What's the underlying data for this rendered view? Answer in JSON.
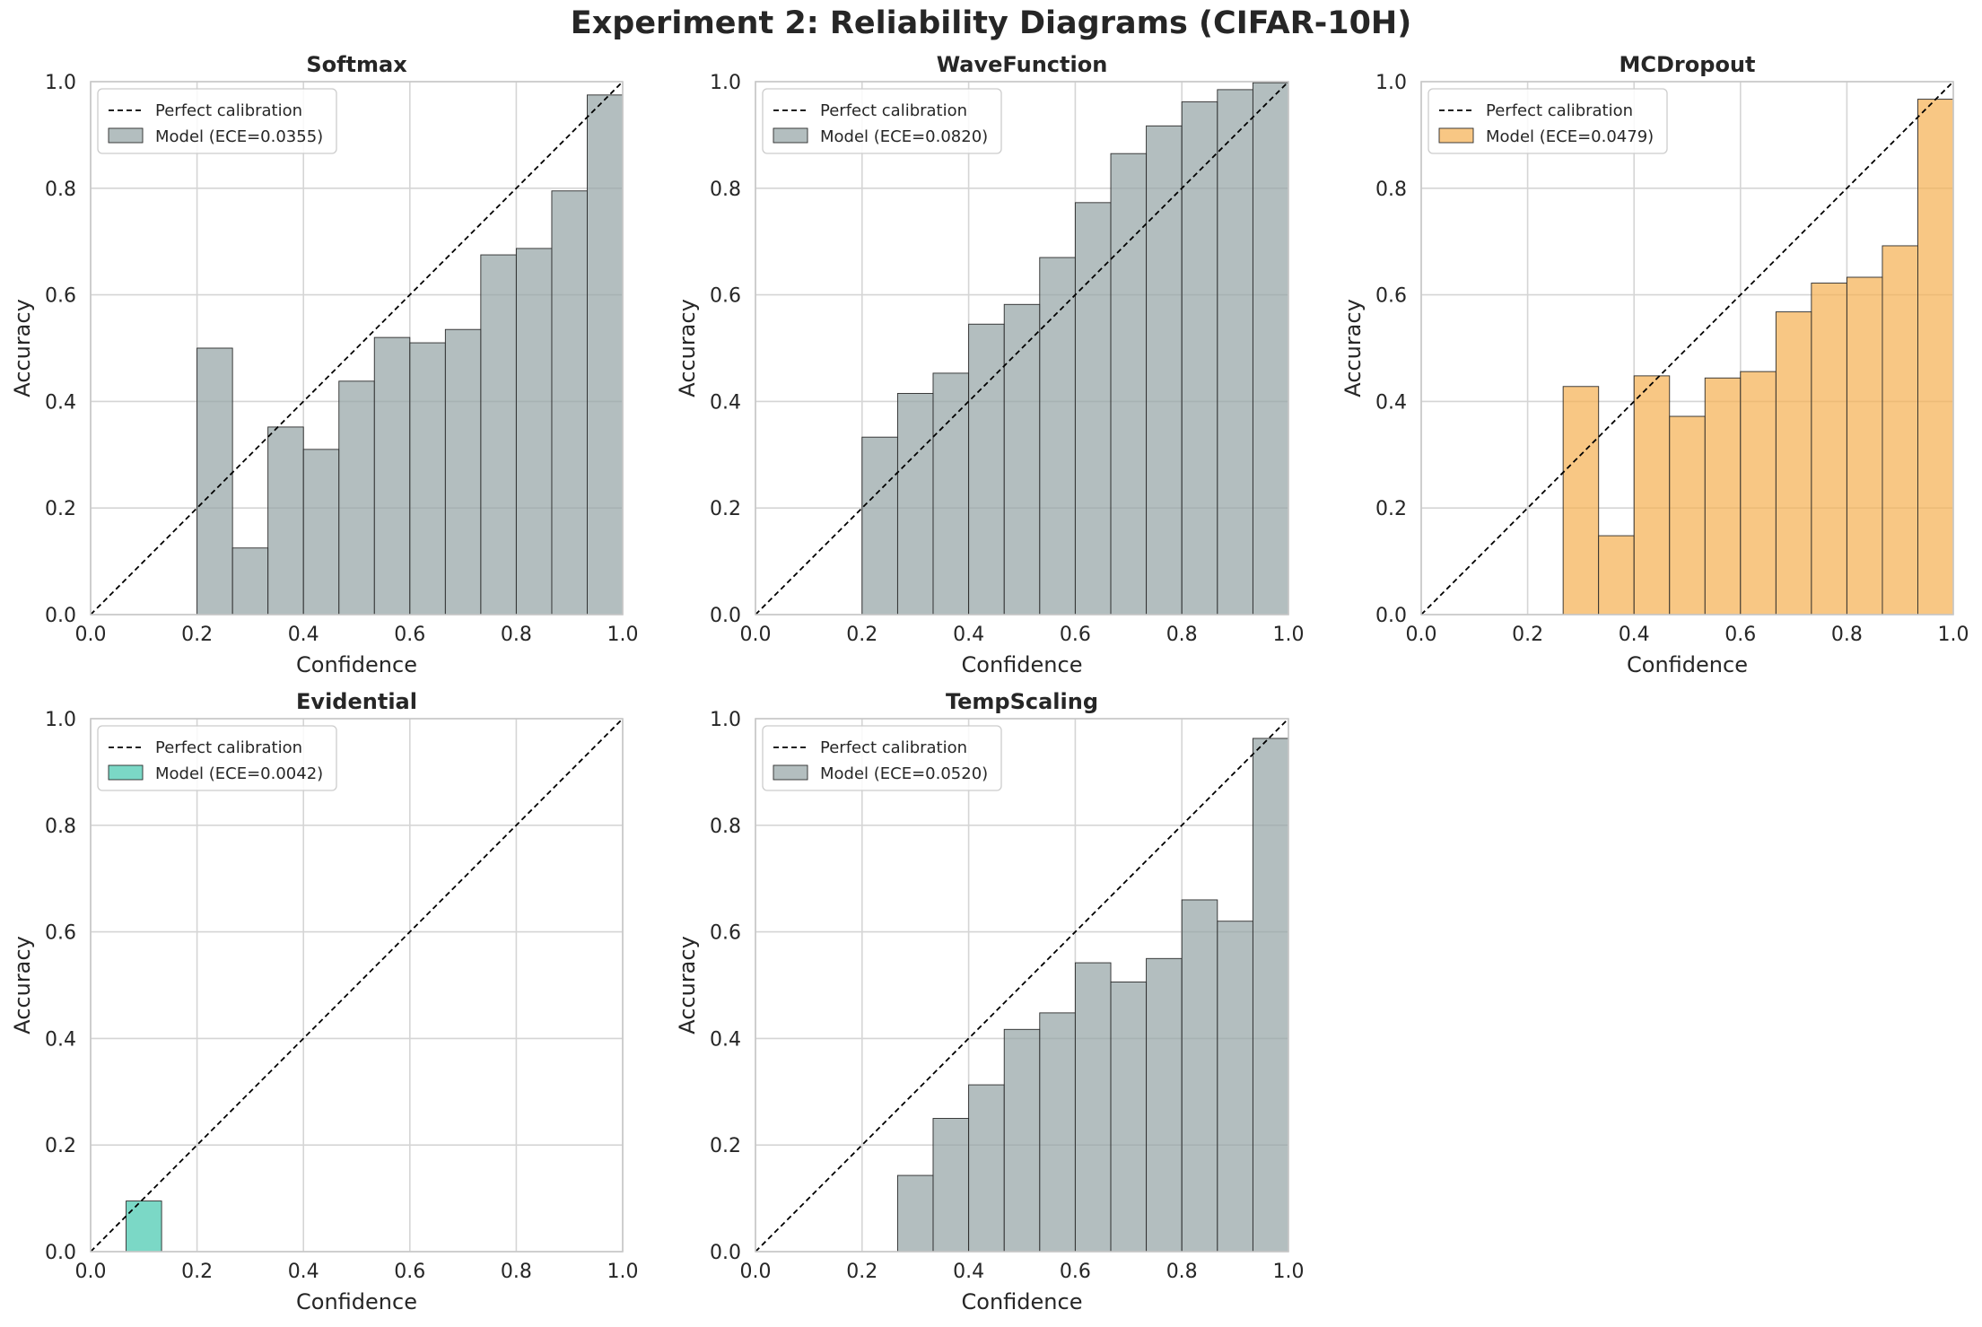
{
  "figure": {
    "title": "Experiment 2: Reliability Diagrams (CIFAR-10H)"
  },
  "chart_data": [
    {
      "type": "bar",
      "title": "Softmax",
      "xlabel": "Confidence",
      "ylabel": "Accuracy",
      "xlim": [
        0,
        1
      ],
      "ylim": [
        0,
        1
      ],
      "xticks": [
        "0.0",
        "0.2",
        "0.4",
        "0.6",
        "0.8",
        "1.0"
      ],
      "yticks": [
        "0.0",
        "0.2",
        "0.4",
        "0.6",
        "0.8",
        "1.0"
      ],
      "grid": true,
      "legend": [
        "Perfect calibration",
        "Model (ECE=0.0355)"
      ],
      "legend_position": "upper-left",
      "bar_color": "#95a5a6",
      "bin_width": 0.0667,
      "bin_starts": [
        0.2,
        0.2667,
        0.3333,
        0.4,
        0.4667,
        0.5333,
        0.6,
        0.6667,
        0.7333,
        0.8,
        0.8667,
        0.9333
      ],
      "values": [
        0.5,
        0.125,
        0.352,
        0.31,
        0.438,
        0.52,
        0.51,
        0.535,
        0.675,
        0.687,
        0.795,
        0.975
      ]
    },
    {
      "type": "bar",
      "title": "WaveFunction",
      "xlabel": "Confidence",
      "ylabel": "Accuracy",
      "xlim": [
        0,
        1
      ],
      "ylim": [
        0,
        1
      ],
      "xticks": [
        "0.0",
        "0.2",
        "0.4",
        "0.6",
        "0.8",
        "1.0"
      ],
      "yticks": [
        "0.0",
        "0.2",
        "0.4",
        "0.6",
        "0.8",
        "1.0"
      ],
      "grid": true,
      "legend": [
        "Perfect calibration",
        "Model (ECE=0.0820)"
      ],
      "legend_position": "upper-left",
      "bar_color": "#95a5a6",
      "bin_width": 0.0667,
      "bin_starts": [
        0.2,
        0.2667,
        0.3333,
        0.4,
        0.4667,
        0.5333,
        0.6,
        0.6667,
        0.7333,
        0.8,
        0.8667,
        0.9333
      ],
      "values": [
        0.333,
        0.415,
        0.453,
        0.545,
        0.582,
        0.67,
        0.773,
        0.865,
        0.917,
        0.962,
        0.985,
        0.998
      ]
    },
    {
      "type": "bar",
      "title": "MCDropout",
      "xlabel": "Confidence",
      "ylabel": "Accuracy",
      "xlim": [
        0,
        1
      ],
      "ylim": [
        0,
        1
      ],
      "xticks": [
        "0.0",
        "0.2",
        "0.4",
        "0.6",
        "0.8",
        "1.0"
      ],
      "yticks": [
        "0.0",
        "0.2",
        "0.4",
        "0.6",
        "0.8",
        "1.0"
      ],
      "grid": true,
      "legend": [
        "Perfect calibration",
        "Model (ECE=0.0479)"
      ],
      "legend_position": "upper-left",
      "bar_color": "#f5b155",
      "bin_width": 0.0667,
      "bin_starts": [
        0.2667,
        0.3333,
        0.4,
        0.4667,
        0.5333,
        0.6,
        0.6667,
        0.7333,
        0.8,
        0.8667,
        0.9333
      ],
      "values": [
        0.428,
        0.148,
        0.448,
        0.372,
        0.444,
        0.456,
        0.568,
        0.622,
        0.633,
        0.692,
        0.967
      ]
    },
    {
      "type": "bar",
      "title": "Evidential",
      "xlabel": "Confidence",
      "ylabel": "Accuracy",
      "xlim": [
        0,
        1
      ],
      "ylim": [
        0,
        1
      ],
      "xticks": [
        "0.0",
        "0.2",
        "0.4",
        "0.6",
        "0.8",
        "1.0"
      ],
      "yticks": [
        "0.0",
        "0.2",
        "0.4",
        "0.6",
        "0.8",
        "1.0"
      ],
      "grid": true,
      "legend": [
        "Perfect calibration",
        "Model (ECE=0.0042)"
      ],
      "legend_position": "upper-left",
      "bar_color": "#48c9b0",
      "bin_width": 0.0667,
      "bin_starts": [
        0.0667
      ],
      "values": [
        0.095
      ]
    },
    {
      "type": "bar",
      "title": "TempScaling",
      "xlabel": "Confidence",
      "ylabel": "Accuracy",
      "xlim": [
        0,
        1
      ],
      "ylim": [
        0,
        1
      ],
      "xticks": [
        "0.0",
        "0.2",
        "0.4",
        "0.6",
        "0.8",
        "1.0"
      ],
      "yticks": [
        "0.0",
        "0.2",
        "0.4",
        "0.6",
        "0.8",
        "1.0"
      ],
      "grid": true,
      "legend": [
        "Perfect calibration",
        "Model (ECE=0.0520)"
      ],
      "legend_position": "upper-left",
      "bar_color": "#95a5a6",
      "bin_width": 0.0667,
      "bin_starts": [
        0.2667,
        0.3333,
        0.4,
        0.4667,
        0.5333,
        0.6,
        0.6667,
        0.7333,
        0.8,
        0.8667,
        0.9333
      ],
      "values": [
        0.143,
        0.25,
        0.313,
        0.417,
        0.448,
        0.542,
        0.506,
        0.55,
        0.66,
        0.62,
        0.963
      ]
    }
  ]
}
